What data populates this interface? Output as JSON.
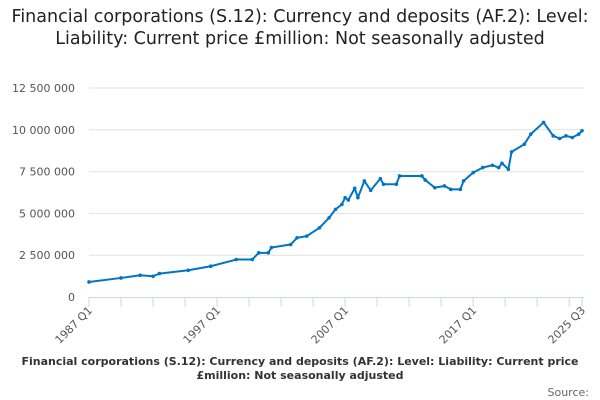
{
  "chart_data": {
    "type": "line",
    "title": "Financial corporations (S.12): Currency and deposits (AF.2): Level: Liability: Current price £million: Not seasonally adjusted",
    "xlabel": "",
    "ylabel": "",
    "ylim": [
      0,
      12500000
    ],
    "yticks": [
      "0",
      "2 500 000",
      "5 000 000",
      "7 500 000",
      "10 000 000",
      "12 500 000"
    ],
    "ytick_values": [
      0,
      2500000,
      5000000,
      7500000,
      10000000,
      12500000
    ],
    "xticks": [
      "1987 Q1",
      "1997 Q1",
      "2007 Q1",
      "2017 Q1",
      "2025 Q3"
    ],
    "grid": true,
    "color": "#0075c4",
    "points": [
      [
        "1987 Q1",
        900000
      ],
      [
        "1989 Q3",
        1140000
      ],
      [
        "1991 Q1",
        1300000
      ],
      [
        "1992 Q1",
        1240000
      ],
      [
        "1992 Q3",
        1400000
      ],
      [
        "1994 Q4",
        1600000
      ],
      [
        "1996 Q3",
        1840000
      ],
      [
        "1998 Q3",
        2240000
      ],
      [
        "1999 Q4",
        2240000
      ],
      [
        "2000 Q2",
        2640000
      ],
      [
        "2001 Q1",
        2640000
      ],
      [
        "2001 Q2",
        2960000
      ],
      [
        "2002 Q4",
        3140000
      ],
      [
        "2003 Q2",
        3540000
      ],
      [
        "2004 Q1",
        3640000
      ],
      [
        "2005 Q1",
        4140000
      ],
      [
        "2005 Q4",
        4740000
      ],
      [
        "2006 Q2",
        5240000
      ],
      [
        "2006 Q4",
        5540000
      ],
      [
        "2007 Q1",
        5940000
      ],
      [
        "2007 Q2",
        5800000
      ],
      [
        "2007 Q4",
        6500000
      ],
      [
        "2008 Q1",
        5940000
      ],
      [
        "2008 Q3",
        6940000
      ],
      [
        "2009 Q1",
        6380000
      ],
      [
        "2009 Q4",
        7080000
      ],
      [
        "2010 Q1",
        6740000
      ],
      [
        "2011 Q1",
        6740000
      ],
      [
        "2011 Q2",
        7240000
      ],
      [
        "2013 Q1",
        7240000
      ],
      [
        "2013 Q2",
        7000000
      ],
      [
        "2014 Q1",
        6540000
      ],
      [
        "2014 Q4",
        6640000
      ],
      [
        "2015 Q2",
        6440000
      ],
      [
        "2016 Q1",
        6440000
      ],
      [
        "2016 Q2",
        6940000
      ],
      [
        "2017 Q1",
        7440000
      ],
      [
        "2017 Q4",
        7740000
      ],
      [
        "2018 Q3",
        7880000
      ],
      [
        "2019 Q1",
        7740000
      ],
      [
        "2019 Q2",
        8000000
      ],
      [
        "2019 Q4",
        7640000
      ],
      [
        "2020 Q1",
        8680000
      ],
      [
        "2021 Q1",
        9140000
      ],
      [
        "2021 Q3",
        9740000
      ],
      [
        "2022 Q3",
        10440000
      ],
      [
        "2023 Q2",
        9640000
      ],
      [
        "2023 Q4",
        9480000
      ],
      [
        "2024 Q2",
        9640000
      ],
      [
        "2024 Q4",
        9540000
      ],
      [
        "2025 Q2",
        9740000
      ],
      [
        "2025 Q3",
        9940000
      ]
    ]
  },
  "footer": {
    "caption": "Financial corporations (S.12): Currency and deposits (AF.2): Level: Liability: Current price £million: Not seasonally adjusted",
    "source": "Source:"
  }
}
